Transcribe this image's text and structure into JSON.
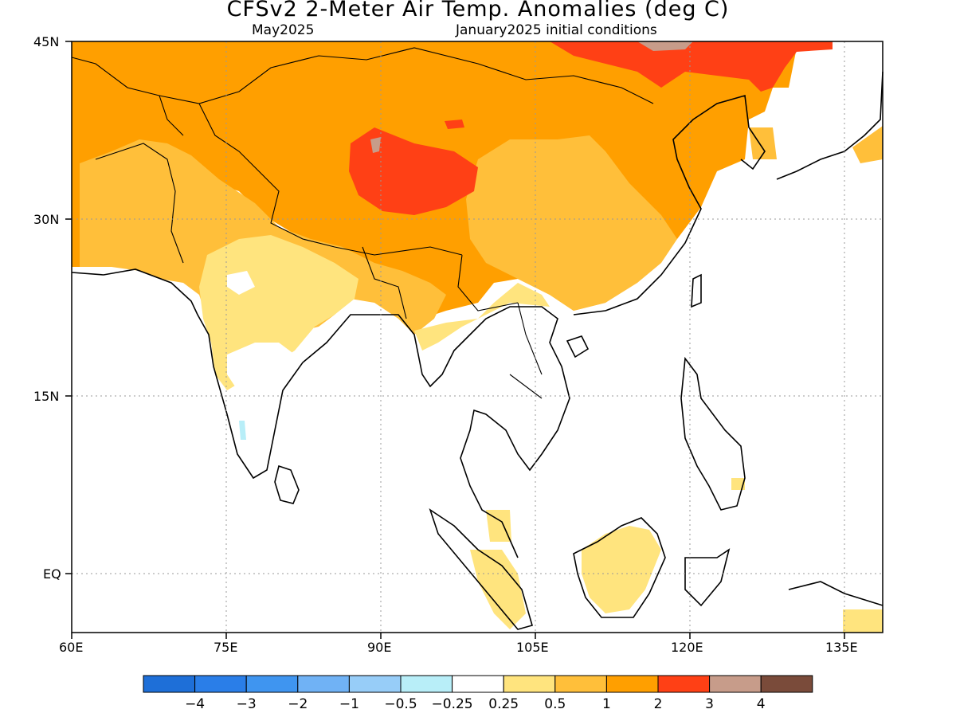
{
  "header": {
    "title": "CFSv2 2-Meter Air Temp. Anomalies (deg C)",
    "valid_month": "May2025",
    "init": "January2025 initial conditions"
  },
  "map": {
    "lon_range": [
      60,
      140
    ],
    "lat_range": [
      -5,
      45
    ],
    "lon_ticks": [
      "60E",
      "75E",
      "90E",
      "105E",
      "120E",
      "135E"
    ],
    "lat_ticks": [
      "45N",
      "30N",
      "15N",
      "EQ"
    ],
    "grid": "dotted"
  },
  "colorbar": {
    "labels": [
      "-4",
      "-3",
      "-2",
      "-1",
      "-0.5",
      "-0.25",
      "0.25",
      "0.5",
      "1",
      "2",
      "3",
      "4"
    ],
    "colors": [
      "#1e6fd8",
      "#2a7ee8",
      "#3f95f0",
      "#70b2f5",
      "#97cdf8",
      "#b8eef8",
      "#ffffff",
      "#ffe47e",
      "#ffbf3a",
      "#ff9f00",
      "#ff4015",
      "#c79c8a",
      "#7a4b3a"
    ]
  }
}
